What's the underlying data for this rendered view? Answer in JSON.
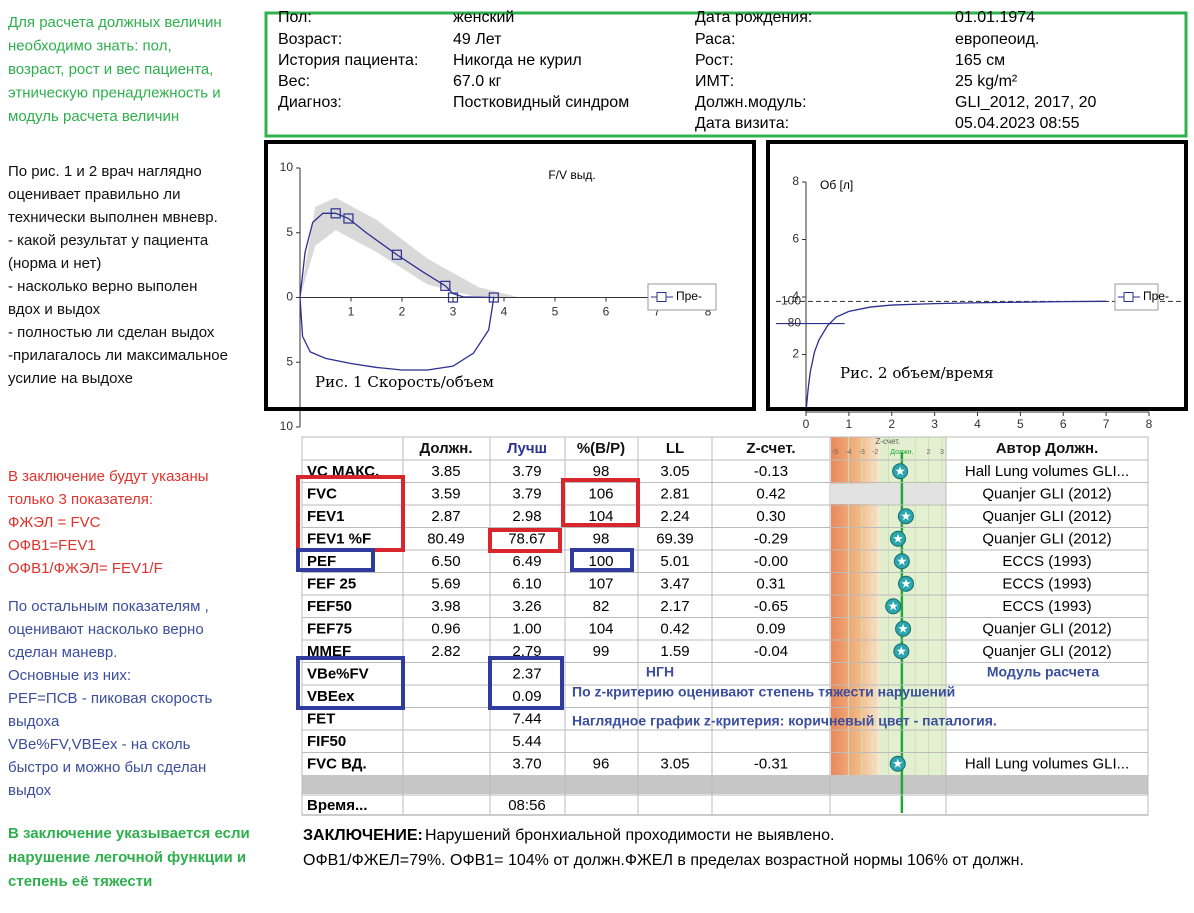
{
  "header": {
    "left": [
      {
        "label": "Пол:",
        "value": "женский"
      },
      {
        "label": "Возраст:",
        "value": "49 Лет"
      },
      {
        "label": "История пациента:",
        "value": "Никогда не курил"
      },
      {
        "label": "Вес:",
        "value": "67.0 кг"
      },
      {
        "label": "Диагноз:",
        "value": "Постковидный синдром"
      }
    ],
    "right": [
      {
        "label": "Дата рождения:",
        "value": "01.01.1974"
      },
      {
        "label": "Раса:",
        "value": "европеоид."
      },
      {
        "label": "Рост:",
        "value": "165 см"
      },
      {
        "label": "ИМТ:",
        "value": "25 kg/m²"
      },
      {
        "label": "Должн.модуль:",
        "value": "GLI_2012, 2017, 20"
      },
      {
        "label": "Дата визита:",
        "value": "05.04.2023 08:55"
      }
    ]
  },
  "annotations": [
    {
      "color": "#2eb04c",
      "bold": false,
      "lines": [
        "Для расчета должных величин",
        "необходимо знать: пол,",
        "возраст, рост и вес пациента,",
        "этническую пренадлежность и",
        "модуль расчета величин"
      ]
    },
    {
      "color": "#111111",
      "bold": false,
      "lines": [
        "По рис. 1 и 2 врач наглядно",
        "оценивает правильно ли",
        "технически выполнен мвневр.",
        " - какой результат у пациента",
        "(норма и нет)",
        "-  насколько верно выполен",
        "вдох и выдох",
        " - полностью ли сделан выдох",
        "-прилагалось ли максимальное",
        "усилие на выдохе"
      ]
    },
    {
      "color": "#e0332b",
      "bold": false,
      "lines": [
        "В заключение будут указаны",
        "только 3 показателя:",
        "ФЖЭЛ = FVC",
        "ОФВ1=FEV1",
        "ОФВ1/ФЖЭЛ= FEV1/F"
      ]
    },
    {
      "color": "#3b4e9e",
      "bold": false,
      "lines": [
        "По остальным показателям ,",
        "оценивают насколько верно",
        "сделан маневр.",
        "Основные из них:",
        "PEF=ПСВ - пиковая скорость",
        "выдоха",
        "VBe%FV,VBEex - на сколь",
        "быстро и можно был сделан",
        "выдох"
      ]
    },
    {
      "color": "#2eb04c",
      "bold": true,
      "lines": [
        "В заключение указывается если",
        "нарушение легочной функции и",
        "степень её тяжести"
      ]
    }
  ],
  "chart_data": [
    {
      "type": "line",
      "title": "F/V выд.",
      "caption": "Рис. 1 Скорость/объем",
      "x": [
        0,
        0.1,
        0.25,
        0.45,
        0.7,
        0.95,
        1.3,
        1.9,
        2.4,
        2.85,
        3.0,
        3.2,
        3.8,
        3.7,
        3.4,
        3.0,
        2.5,
        2.0,
        1.5,
        1.0,
        0.5,
        0.2,
        0.05,
        0
      ],
      "series": [
        {
          "name": "Пре-",
          "color": "#2b2f8f",
          "values": [
            0,
            3.5,
            5.8,
            6.5,
            6.5,
            6.1,
            5.0,
            3.3,
            2.0,
            0.9,
            0.3,
            0.05,
            0,
            -2.5,
            -4.3,
            -5.3,
            -5.6,
            -5.6,
            -5.4,
            -5.1,
            -4.7,
            -4.2,
            -3.0,
            0
          ],
          "markers": {
            "x": [
              0.7,
              0.95,
              1.9,
              2.85,
              3.0,
              3.8
            ],
            "y": [
              6.5,
              6.1,
              3.3,
              0.9,
              0,
              0
            ]
          }
        }
      ],
      "band": {
        "color": "#d9d9d9",
        "x": [
          0,
          0.3,
          0.7,
          1.5,
          2.5,
          3.5,
          4.3
        ],
        "lower": [
          0,
          4,
          5.2,
          3.5,
          1.0,
          0,
          0
        ],
        "upper": [
          0,
          7,
          7.7,
          6,
          3,
          0.8,
          0
        ]
      },
      "xlim": [
        0,
        8
      ],
      "ylim": [
        -10,
        10
      ],
      "xticks": [
        1,
        2,
        3,
        4,
        5,
        6,
        7,
        8
      ],
      "yticks": [
        {
          "value": -10,
          "label": "10"
        },
        {
          "value": -5,
          "label": "5"
        },
        0,
        5,
        10
      ]
    },
    {
      "type": "line",
      "caption": "Рис. 2 объем/время",
      "ylabel": "Об [л]",
      "x": [
        0,
        0.05,
        0.1,
        0.2,
        0.3,
        0.5,
        0.7,
        1,
        1.5,
        2,
        3,
        4,
        5,
        6,
        7
      ],
      "series": [
        {
          "name": "Пре-",
          "color": "#2b2f8f",
          "values": [
            0,
            0.8,
            1.4,
            2.1,
            2.5,
            3.0,
            3.3,
            3.5,
            3.65,
            3.72,
            3.77,
            3.8,
            3.82,
            3.84,
            3.85
          ]
        }
      ],
      "xlim": [
        0,
        8
      ],
      "ylim": [
        0,
        8
      ],
      "xticks": [
        0,
        1,
        2,
        3,
        4,
        5,
        6,
        7,
        8
      ],
      "yticks": [
        2,
        4,
        6,
        8
      ],
      "y2lim": [
        0,
        208
      ],
      "y2ticks": [
        80,
        100
      ]
    }
  ],
  "table": {
    "columns": [
      "Должн.",
      "Лучш",
      "%(В/Р)",
      "LL",
      "Z-счет.",
      "Автор Должн."
    ],
    "z_scale": {
      "title": "Z-счет.",
      "lim": [
        -5.3,
        3.3
      ],
      "ticks": [
        -5,
        -4,
        -3,
        -2,
        2,
        3
      ],
      "ref": {
        "value": 0,
        "label": "Должн."
      }
    },
    "rows": [
      {
        "marker": true,
        "cells": [
          "VC МАКС.",
          "3.85",
          "3.79",
          "98",
          "3.05",
          "-0.13",
          "Hall Lung volumes GLI..."
        ]
      },
      {
        "marker": false,
        "cells": [
          "FVC",
          "3.59",
          "3.79",
          "106",
          "2.81",
          "0.42",
          "Quanjer GLI (2012)"
        ]
      },
      {
        "marker": true,
        "cells": [
          "FEV1",
          "2.87",
          "2.98",
          "104",
          "2.24",
          "0.30",
          "Quanjer GLI (2012)"
        ]
      },
      {
        "marker": true,
        "cells": [
          "FEV1 %F",
          "80.49",
          "78.67",
          "98",
          "69.39",
          "-0.29",
          "Quanjer GLI (2012)"
        ]
      },
      {
        "marker": true,
        "cells": [
          "PEF",
          "6.50",
          "6.49",
          "100",
          "5.01",
          "-0.00",
          "ECCS (1993)"
        ]
      },
      {
        "marker": true,
        "cells": [
          "FEF 25",
          "5.69",
          "6.10",
          "107",
          "3.47",
          "0.31",
          "ECCS (1993)"
        ]
      },
      {
        "marker": true,
        "cells": [
          "FEF50",
          "3.98",
          "3.26",
          "82",
          "2.17",
          "-0.65",
          "ECCS (1993)"
        ]
      },
      {
        "marker": true,
        "cells": [
          "FEF75",
          "0.96",
          "1.00",
          "104",
          "0.42",
          "0.09",
          "Quanjer GLI (2012)"
        ]
      },
      {
        "marker": true,
        "cells": [
          "MMEF",
          "2.82",
          "2.79",
          "99",
          "1.59",
          "-0.04",
          "Quanjer GLI (2012)"
        ]
      },
      {
        "marker": false,
        "cells": [
          "VBe%FV",
          null,
          "2.37",
          null,
          null,
          null,
          null
        ]
      },
      {
        "marker": false,
        "cells": [
          "VBEex",
          null,
          "0.09",
          null,
          null,
          null,
          null
        ]
      },
      {
        "marker": false,
        "cells": [
          "FET",
          null,
          "7.44",
          null,
          null,
          null,
          null
        ]
      },
      {
        "marker": false,
        "cells": [
          "FIF50",
          null,
          "5.44",
          null,
          null,
          null,
          null
        ]
      },
      {
        "marker": true,
        "cells": [
          "FVC ВД.",
          null,
          "3.70",
          "96",
          "3.05",
          "-0.31",
          "Hall Lung volumes GLI..."
        ]
      },
      {
        "marker": false,
        "cells": [
          "Время...",
          null,
          "08:56",
          null,
          null,
          null,
          null
        ]
      }
    ]
  },
  "table_notes": [
    "НГН",
    "Модуль расчета",
    "По z-критерию оценивают степень тяжести нарушений",
    "Наглядное график z-критерия: коричневый цвет - паталогия."
  ],
  "conclusion": {
    "label": "ЗАКЛЮЧЕНИЕ:",
    "line1": "Нарушений бронхиальной проходимости не выявлено.",
    "line2": "ОФВ1/ФЖЕЛ=79%. ОФВ1= 104% от должн.ФЖЕЛ в пределах возрастной нормы 106% от должн."
  }
}
